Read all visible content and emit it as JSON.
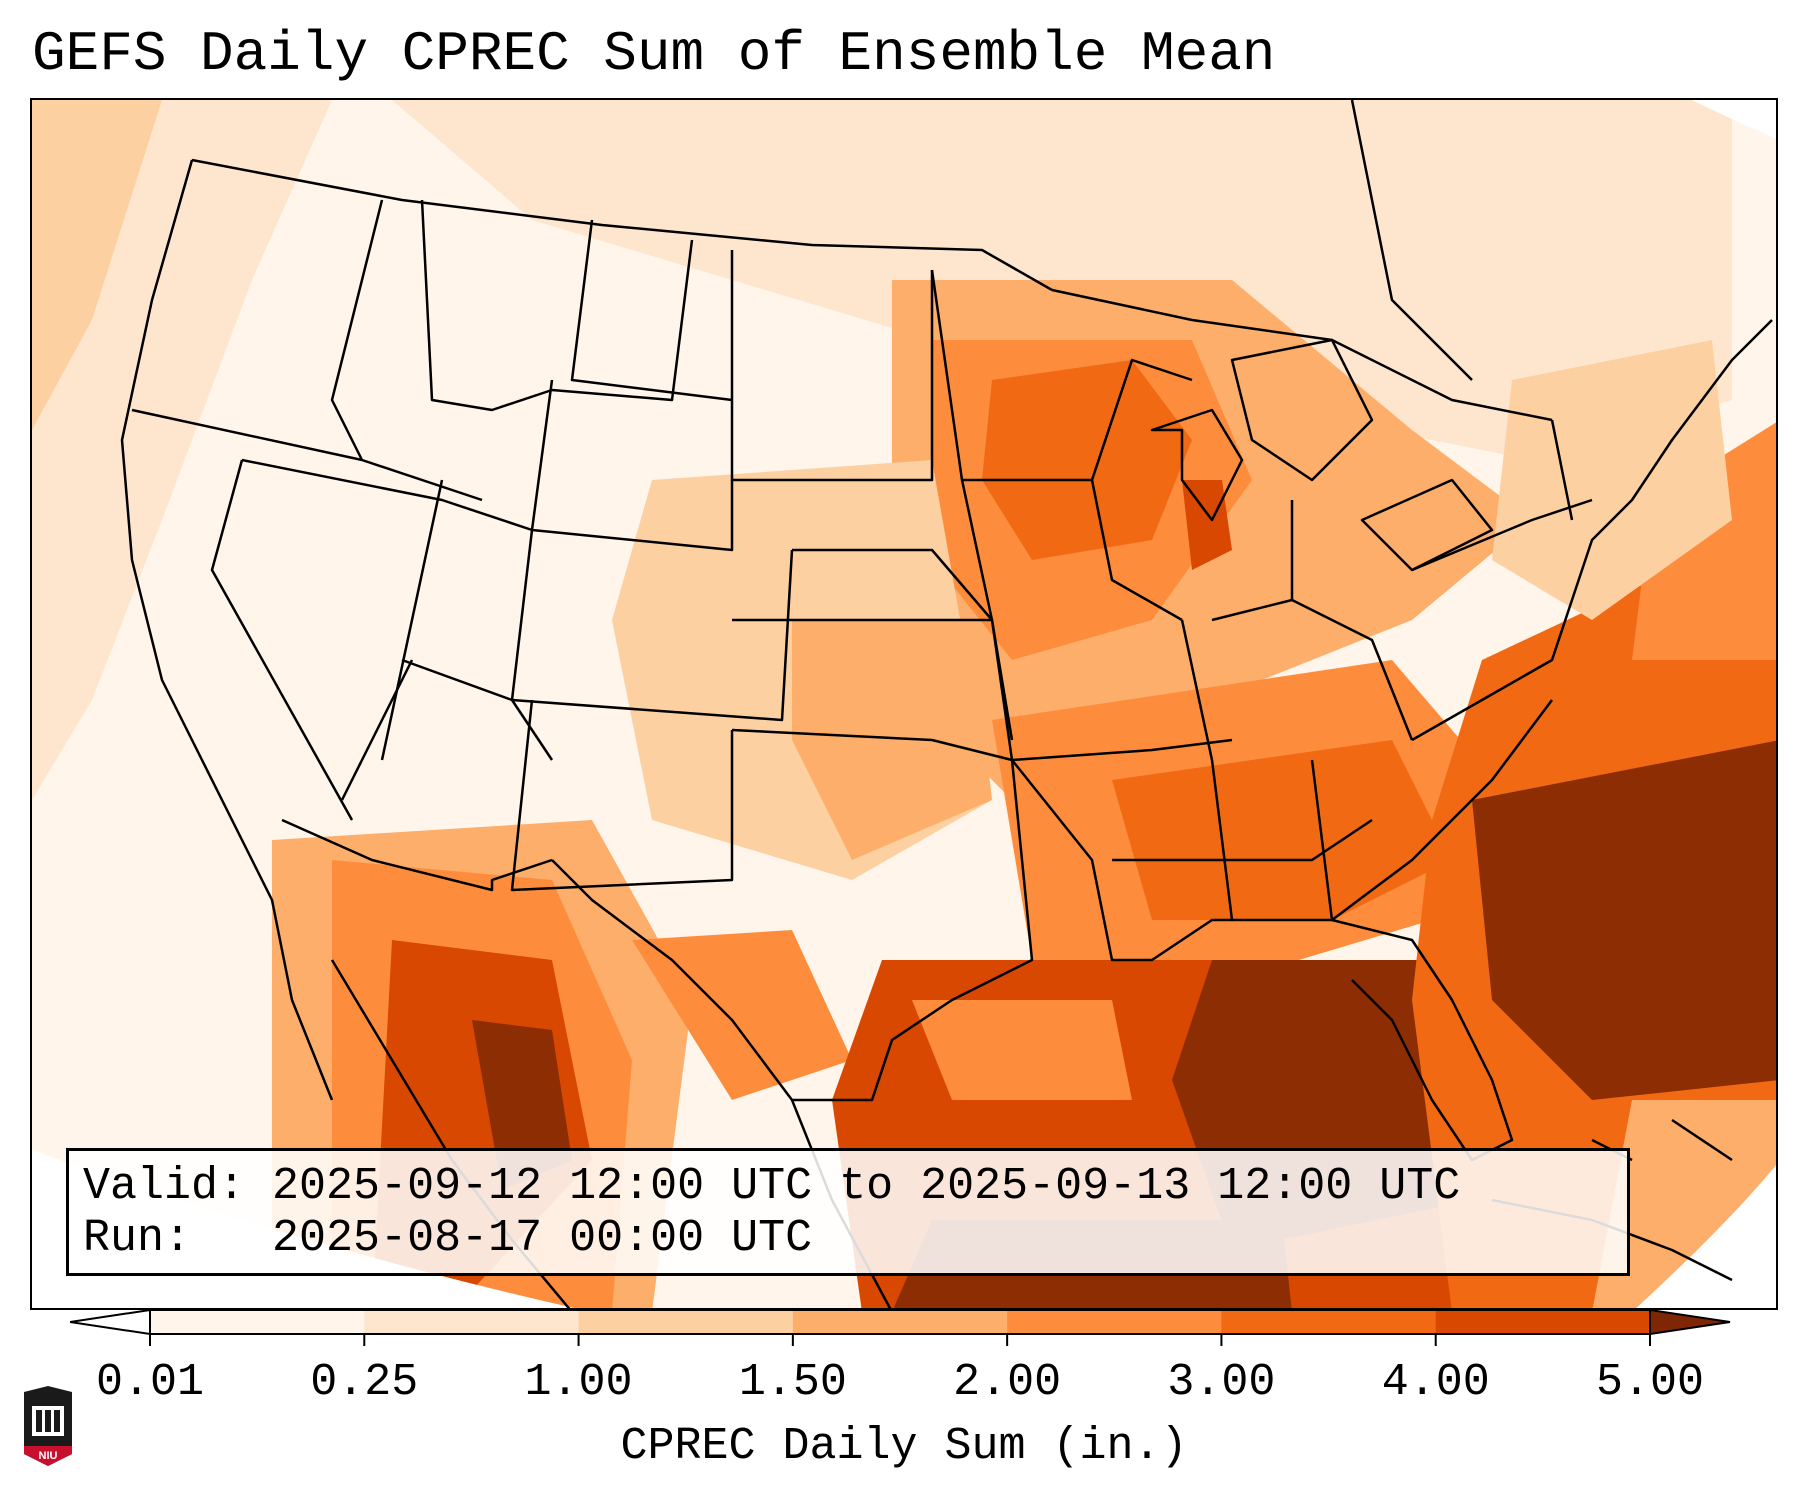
{
  "title": "GEFS Daily CPREC Sum of Ensemble Mean",
  "info": {
    "valid_label": "Valid:",
    "valid_value": "2025-09-12 12:00 UTC to 2025-09-13 12:00 UTC",
    "run_label": "Run:",
    "run_value": "2025-08-17 00:00 UTC"
  },
  "colorbar": {
    "label": "CPREC Daily Sum (in.)",
    "ticks": [
      "0.01",
      "0.25",
      "1.00",
      "1.50",
      "2.00",
      "3.00",
      "4.00",
      "5.00"
    ],
    "colors": [
      "#fff5eb",
      "#fee6ce",
      "#fdd0a2",
      "#fdae6b",
      "#fd8d3c",
      "#f16913",
      "#d94801",
      "#8c2d04"
    ],
    "under_color": "#ffffff",
    "over_color": "#7f2704"
  },
  "map": {
    "region": "Continental United States, southern Canada, northern Mexico, Gulf of Mexico",
    "heaviest_precip_regions": [
      "Gulf of Mexico",
      "Southeast US coast / western Atlantic",
      "Northwest Mexico"
    ]
  },
  "logo": {
    "text": "NIU"
  }
}
